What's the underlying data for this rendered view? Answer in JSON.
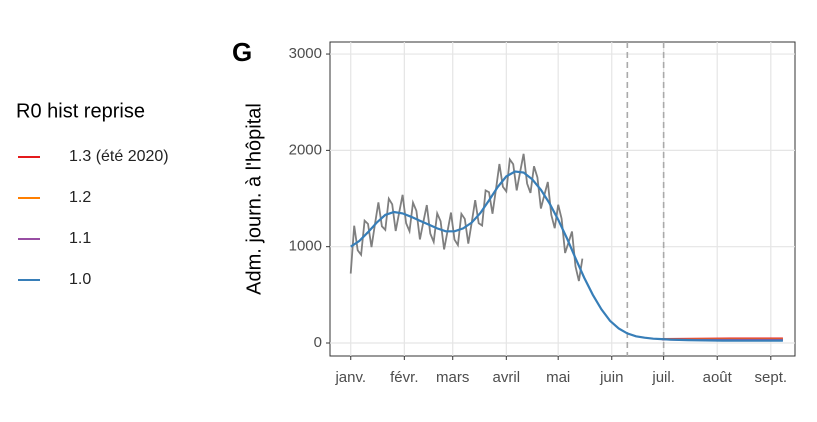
{
  "chart_data": {
    "type": "line",
    "panel_label": "G",
    "ylabel": "Adm. journ. à l'hôpital",
    "legend_title": "R0 hist reprise",
    "legend": "left",
    "grid": true,
    "xlim": [
      -12,
      257
    ],
    "ylim": [
      -135,
      3125
    ],
    "yticks": [
      0,
      1000,
      2000,
      3000
    ],
    "xticks": [
      {
        "value": 0,
        "label": "janv."
      },
      {
        "value": 31,
        "label": "févr."
      },
      {
        "value": 59,
        "label": "mars"
      },
      {
        "value": 90,
        "label": "avril"
      },
      {
        "value": 120,
        "label": "mai"
      },
      {
        "value": 151,
        "label": "juin"
      },
      {
        "value": 181,
        "label": "juil."
      },
      {
        "value": 212,
        "label": "août"
      },
      {
        "value": 243,
        "label": "sept."
      }
    ],
    "vlines": [
      160,
      181
    ],
    "observed": {
      "color": "#7f7f7f",
      "x": [
        0,
        2,
        4,
        6,
        8,
        10,
        12,
        14,
        16,
        18,
        20,
        22,
        24,
        26,
        28,
        30,
        32,
        34,
        36,
        38,
        40,
        42,
        44,
        46,
        48,
        50,
        52,
        54,
        56,
        58,
        60,
        62,
        64,
        66,
        68,
        70,
        72,
        74,
        76,
        78,
        80,
        82,
        84,
        86,
        88,
        90,
        92,
        94,
        96,
        98,
        100,
        102,
        104,
        106,
        108,
        110,
        112,
        114,
        116,
        118,
        120,
        122,
        124,
        126,
        128,
        130,
        132,
        134
      ],
      "values": [
        720,
        1218,
        962,
        916,
        1270,
        1236,
        996,
        1230,
        1460,
        1212,
        1174,
        1498,
        1440,
        1163,
        1351,
        1539,
        1245,
        1161,
        1458,
        1372,
        1076,
        1254,
        1432,
        1136,
        1050,
        1346,
        1264,
        972,
        1160,
        1354,
        1074,
        1016,
        1340,
        1288,
        1032,
        1250,
        1484,
        1244,
        1220,
        1584,
        1566,
        1342,
        1592,
        1858,
        1622,
        1574,
        1906,
        1856,
        1584,
        1774,
        1964,
        1656,
        1558,
        1834,
        1720,
        1396,
        1534,
        1672,
        1330,
        1192,
        1436,
        1290,
        934,
        1046,
        1158,
        794,
        644,
        876
      ]
    },
    "series": [
      {
        "name": "1.3 (été 2020)",
        "color": "#e41a1c",
        "x": [
          180,
          190,
          200,
          210,
          220,
          230,
          240,
          250
        ],
        "values": [
          40,
          42,
          44,
          45,
          46,
          46,
          46,
          46
        ]
      },
      {
        "name": "1.2",
        "color": "#ff7f00",
        "x": [
          180,
          190,
          200,
          210,
          220,
          230,
          240,
          250
        ],
        "values": [
          39,
          38,
          38,
          38,
          38,
          38,
          38,
          38
        ]
      },
      {
        "name": "1.1",
        "color": "#984ea3",
        "x": [
          180,
          190,
          200,
          210,
          220,
          230,
          240,
          250
        ],
        "values": [
          38,
          35,
          33,
          32,
          32,
          32,
          32,
          32
        ]
      },
      {
        "name": "1.0",
        "color": "#377eb8",
        "x": [
          0,
          5,
          10,
          15,
          20,
          25,
          30,
          35,
          40,
          45,
          50,
          55,
          60,
          65,
          70,
          75,
          80,
          85,
          90,
          95,
          100,
          105,
          110,
          115,
          120,
          125,
          130,
          135,
          140,
          145,
          150,
          155,
          160,
          165,
          170,
          175,
          180,
          185,
          190,
          195,
          200,
          205,
          210,
          215,
          220,
          225,
          230,
          235,
          240,
          245,
          250
        ],
        "values": [
          1000,
          1060,
          1150,
          1250,
          1330,
          1360,
          1345,
          1310,
          1270,
          1230,
          1190,
          1160,
          1160,
          1190,
          1250,
          1350,
          1480,
          1620,
          1730,
          1780,
          1770,
          1700,
          1590,
          1450,
          1280,
          1090,
          880,
          680,
          500,
          350,
          230,
          150,
          100,
          70,
          55,
          45,
          40,
          35,
          32,
          30,
          28,
          27,
          26,
          25,
          25,
          24,
          24,
          24,
          24,
          24,
          24
        ]
      }
    ]
  }
}
